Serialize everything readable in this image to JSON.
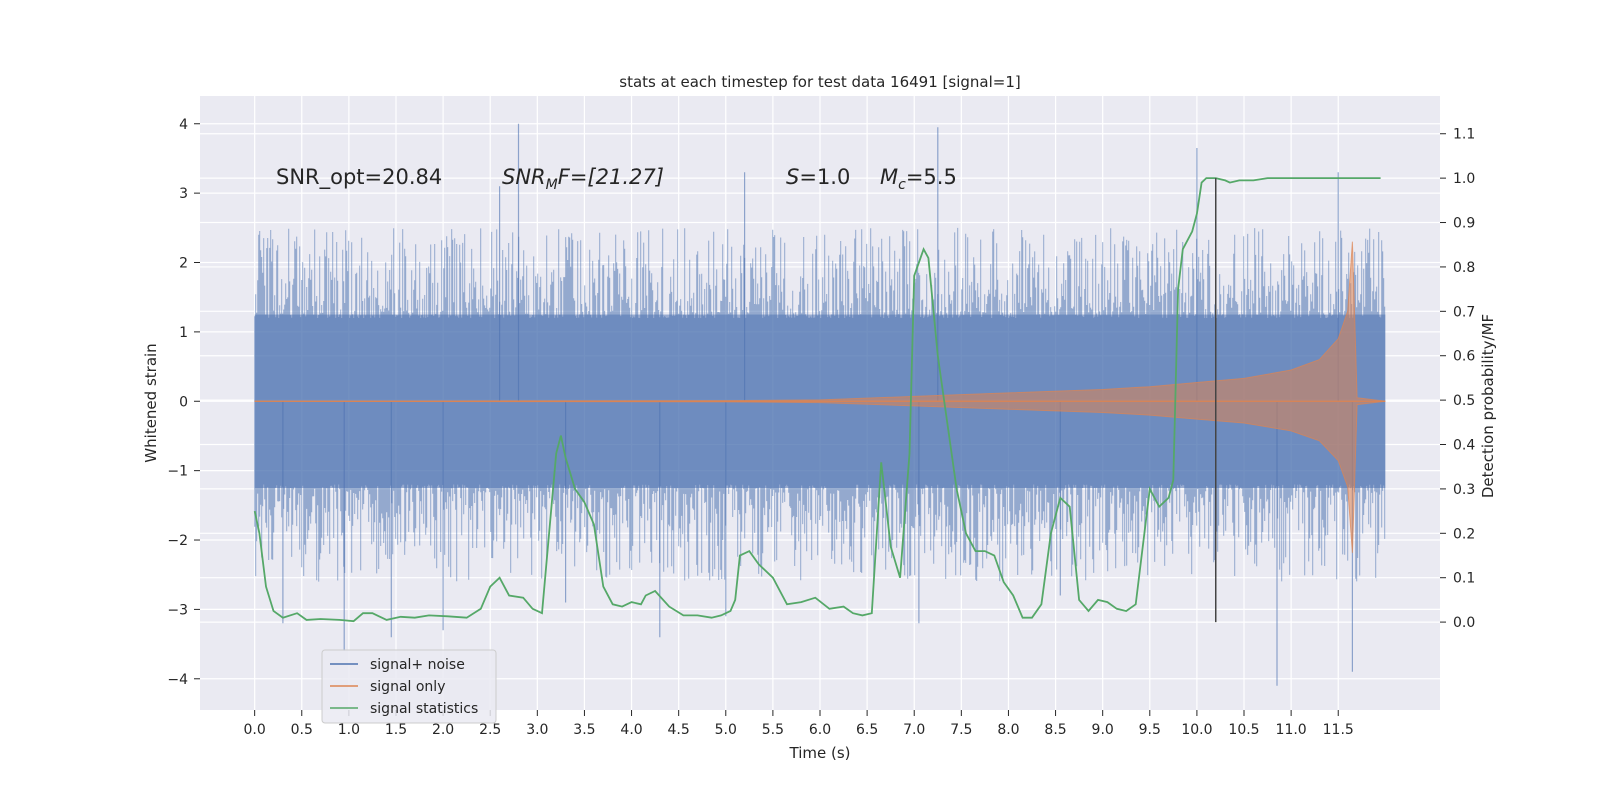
{
  "chart_data": {
    "type": "line",
    "title": "stats at each timestep for test data 16491 [signal=1]",
    "xlabel": "Time (s)",
    "ylabel_left": "Whitened strain",
    "ylabel_right": "Detection probability/MF",
    "xlim": [
      -0.58,
      12.58
    ],
    "ylim_left": [
      -4.45,
      4.4
    ],
    "ylim_right": [
      -0.198,
      1.185
    ],
    "x_ticks": [
      "0.0",
      "0.5",
      "1.0",
      "1.5",
      "2.0",
      "2.5",
      "3.0",
      "3.5",
      "4.0",
      "4.5",
      "5.0",
      "5.5",
      "6.0",
      "6.5",
      "7.0",
      "7.5",
      "8.0",
      "8.5",
      "9.0",
      "9.5",
      "10.0",
      "10.5",
      "11.0",
      "11.5"
    ],
    "y_left_ticks": [
      "−4",
      "−3",
      "−2",
      "−1",
      "0",
      "1",
      "2",
      "3",
      "4"
    ],
    "y_right_ticks": [
      "0.0",
      "0.1",
      "0.2",
      "0.3",
      "0.4",
      "0.5",
      "0.6",
      "0.7",
      "0.8",
      "0.9",
      "1.0",
      "1.1"
    ],
    "grid": true,
    "background": "#eaeaf2",
    "legend": {
      "position": "lower-left",
      "entries": [
        {
          "label": "signal+ noise",
          "color": "#4c72b0"
        },
        {
          "label": "signal only",
          "color": "#dd8452"
        },
        {
          "label": "signal statistics",
          "color": "#55a868"
        }
      ]
    },
    "annotations": {
      "snr_opt": "SNR_opt=20.84",
      "snr_mf_base": "SNR",
      "snr_mf_sub": "M",
      "snr_mf_rest": "F=[21.27]",
      "s_val_base": "S",
      "s_val_rest": "=1.0",
      "mc_base": "M",
      "mc_sub": "c",
      "mc_rest": "=5.5"
    },
    "vertical_marker_x": 10.2,
    "series": [
      {
        "name": "signal+ noise",
        "axis": "left",
        "color": "#4c72b0",
        "x_range": [
          0.0,
          12.0
        ],
        "band_core": [
          -1.25,
          1.25
        ],
        "typical_envelope": [
          -2.0,
          1.9
        ],
        "peaks": [
          [
            0.3,
            -3.2
          ],
          [
            0.95,
            -3.6
          ],
          [
            1.45,
            -3.4
          ],
          [
            2.0,
            -3.3
          ],
          [
            2.6,
            3.1
          ],
          [
            2.8,
            4.0
          ],
          [
            3.3,
            -2.9
          ],
          [
            4.3,
            -3.4
          ],
          [
            5.0,
            -3.1
          ],
          [
            5.2,
            3.3
          ],
          [
            7.05,
            -3.2
          ],
          [
            7.25,
            3.95
          ],
          [
            8.55,
            -2.8
          ],
          [
            10.0,
            3.65
          ],
          [
            10.2,
            -3.0
          ],
          [
            10.85,
            -4.1
          ],
          [
            11.5,
            3.3
          ],
          [
            11.65,
            -3.9
          ]
        ]
      },
      {
        "name": "signal only",
        "axis": "left",
        "color": "#dd8452",
        "x": [
          0.0,
          5.0,
          6.0,
          7.0,
          8.0,
          9.0,
          9.5,
          10.0,
          10.5,
          11.0,
          11.3,
          11.5,
          11.6,
          11.65,
          11.7,
          12.0
        ],
        "amplitude": [
          0.0,
          0.01,
          0.02,
          0.07,
          0.12,
          0.17,
          0.21,
          0.27,
          0.33,
          0.45,
          0.6,
          0.9,
          1.3,
          2.3,
          0.05,
          0.0
        ]
      },
      {
        "name": "signal statistics",
        "axis": "right",
        "color": "#55a868",
        "x": [
          0.0,
          0.05,
          0.12,
          0.2,
          0.3,
          0.45,
          0.55,
          0.7,
          0.9,
          1.05,
          1.15,
          1.25,
          1.4,
          1.55,
          1.7,
          1.85,
          2.05,
          2.25,
          2.4,
          2.5,
          2.6,
          2.7,
          2.85,
          2.95,
          3.05,
          3.2,
          3.25,
          3.3,
          3.4,
          3.5,
          3.6,
          3.7,
          3.8,
          3.9,
          4.0,
          4.1,
          4.15,
          4.25,
          4.4,
          4.55,
          4.7,
          4.85,
          4.95,
          5.05,
          5.1,
          5.15,
          5.25,
          5.35,
          5.5,
          5.65,
          5.8,
          5.95,
          6.1,
          6.25,
          6.35,
          6.45,
          6.55,
          6.65,
          6.75,
          6.85,
          6.95,
          7.0,
          7.1,
          7.15,
          7.25,
          7.35,
          7.45,
          7.55,
          7.65,
          7.75,
          7.85,
          7.95,
          8.05,
          8.15,
          8.25,
          8.35,
          8.45,
          8.55,
          8.65,
          8.75,
          8.85,
          8.95,
          9.05,
          9.15,
          9.25,
          9.35,
          9.5,
          9.6,
          9.7,
          9.75,
          9.8,
          9.85,
          9.95,
          10.0,
          10.05,
          10.1,
          10.2,
          10.3,
          10.35,
          10.45,
          10.6,
          10.75,
          10.9,
          11.0,
          11.1,
          11.3,
          11.5,
          11.6,
          11.7,
          11.8,
          11.9,
          11.95
        ],
        "y": [
          0.25,
          0.2,
          0.08,
          0.025,
          0.01,
          0.02,
          0.005,
          0.007,
          0.005,
          0.002,
          0.02,
          0.02,
          0.005,
          0.012,
          0.01,
          0.015,
          0.013,
          0.01,
          0.03,
          0.08,
          0.1,
          0.06,
          0.055,
          0.03,
          0.02,
          0.38,
          0.42,
          0.37,
          0.3,
          0.27,
          0.22,
          0.08,
          0.04,
          0.035,
          0.045,
          0.04,
          0.06,
          0.07,
          0.035,
          0.015,
          0.015,
          0.01,
          0.015,
          0.025,
          0.05,
          0.15,
          0.16,
          0.13,
          0.1,
          0.04,
          0.045,
          0.055,
          0.03,
          0.035,
          0.02,
          0.015,
          0.02,
          0.36,
          0.17,
          0.1,
          0.38,
          0.78,
          0.84,
          0.82,
          0.6,
          0.45,
          0.3,
          0.2,
          0.16,
          0.16,
          0.15,
          0.09,
          0.06,
          0.01,
          0.01,
          0.04,
          0.2,
          0.28,
          0.26,
          0.05,
          0.025,
          0.05,
          0.045,
          0.03,
          0.025,
          0.04,
          0.3,
          0.26,
          0.28,
          0.32,
          0.75,
          0.84,
          0.88,
          0.92,
          0.99,
          1.0,
          1.0,
          0.995,
          0.99,
          0.995,
          0.995,
          1.0,
          1.0,
          1.0,
          1.0,
          1.0,
          1.0,
          1.0,
          1.0,
          1.0,
          1.0,
          1.0
        ]
      }
    ]
  }
}
